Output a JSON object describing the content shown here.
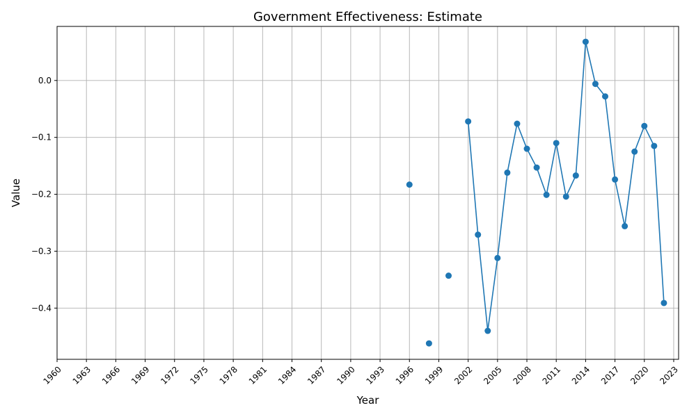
{
  "chart_data": {
    "type": "line",
    "title": "Government Effectiveness: Estimate",
    "xlabel": "Year",
    "ylabel": "Value",
    "xlim": [
      1960,
      2023.5
    ],
    "ylim": [
      -0.49,
      0.095
    ],
    "x_ticks": [
      1960,
      1963,
      1966,
      1969,
      1972,
      1975,
      1978,
      1981,
      1984,
      1987,
      1990,
      1993,
      1996,
      1999,
      2002,
      2005,
      2008,
      2011,
      2014,
      2017,
      2020,
      2023
    ],
    "y_ticks": [
      -0.4,
      -0.3,
      -0.2,
      -0.1,
      0.0
    ],
    "y_tick_labels": [
      "−0.4",
      "−0.3",
      "−0.2",
      "−0.1",
      "0.0"
    ],
    "grid": true,
    "color": "#1f77b4",
    "series": [
      {
        "x": [
          1996,
          1998,
          2000,
          2002,
          2003,
          2004,
          2005,
          2006,
          2007,
          2008,
          2009,
          2010,
          2011,
          2012,
          2013,
          2014,
          2015,
          2016,
          2017,
          2018,
          2019,
          2020,
          2021,
          2022
        ],
        "values": [
          -0.183,
          -0.462,
          -0.343,
          -0.072,
          -0.271,
          -0.44,
          -0.312,
          -0.162,
          -0.076,
          -0.12,
          -0.153,
          -0.201,
          -0.11,
          -0.204,
          -0.167,
          0.068,
          -0.006,
          -0.028,
          -0.174,
          -0.256,
          -0.125,
          -0.08,
          -0.115,
          -0.391
        ]
      }
    ]
  }
}
